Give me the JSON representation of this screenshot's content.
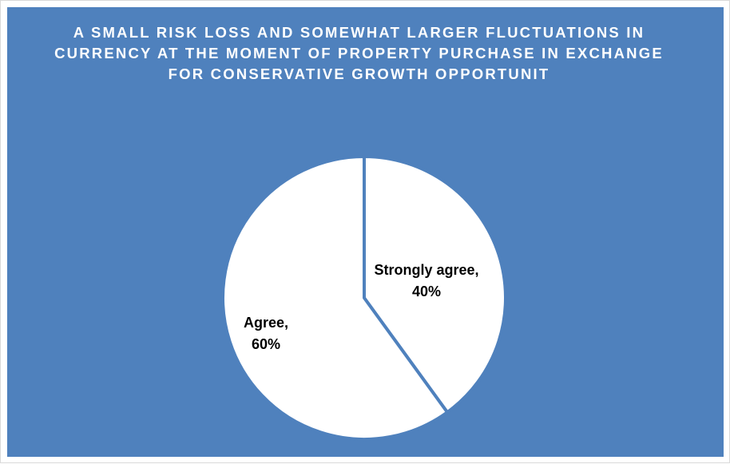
{
  "chart_data": {
    "type": "pie",
    "title": "A SMALL RISK LOSS AND SOMEWHAT LARGER FLUCTUATIONS IN CURRENCY AT THE MOMENT OF PROPERTY PURCHASE IN EXCHANGE FOR CONSERVATIVE GROWTH OPPORTUNIT",
    "slices": [
      {
        "label": "Strongly agree",
        "value": 40,
        "display": [
          "Strongly agree,",
          "40%"
        ],
        "color": "#ffffff"
      },
      {
        "label": "Agree",
        "value": 60,
        "display": [
          "Agree,",
          "60%"
        ],
        "color": "#ffffff"
      }
    ],
    "unit": "%",
    "legend": "none",
    "background_color": "#4f81bd",
    "separator_color": "#4f81bd"
  }
}
